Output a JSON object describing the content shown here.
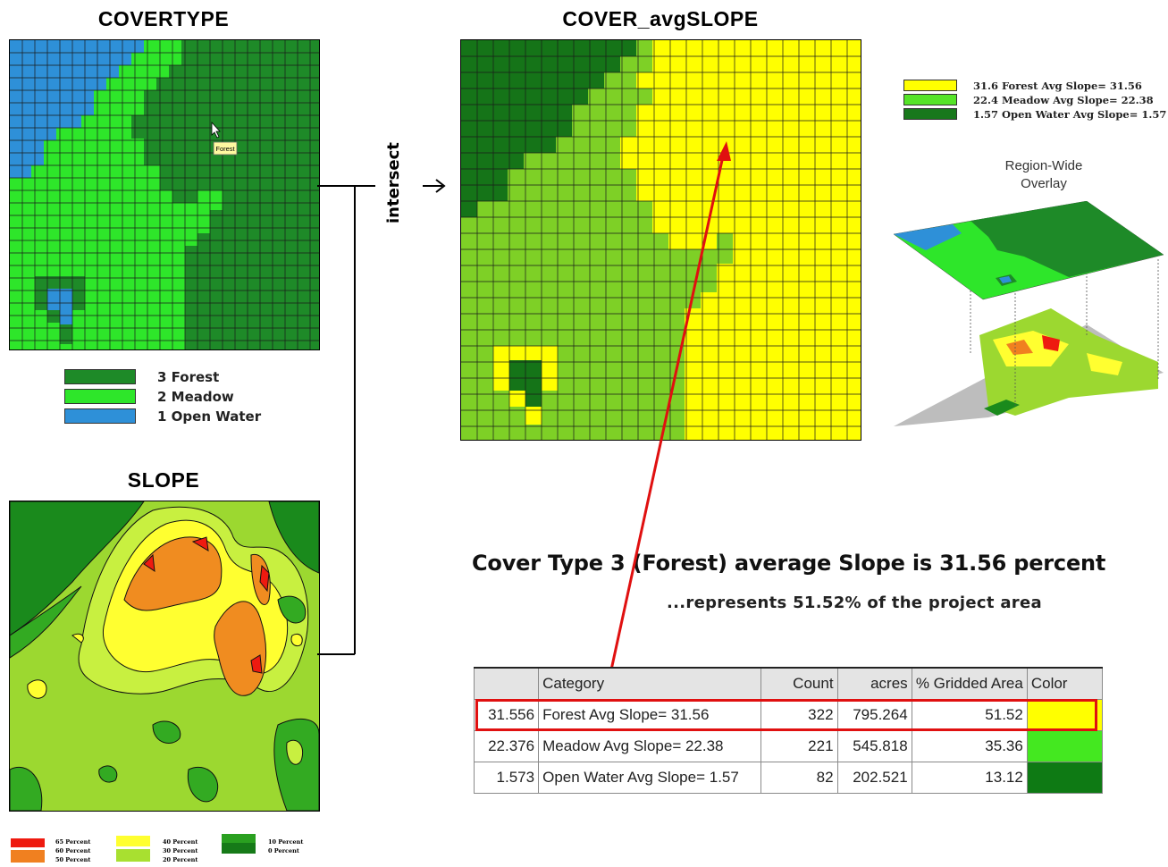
{
  "covertype": {
    "title": "COVERTYPE",
    "forest_label": "Forest",
    "legend": [
      {
        "label": "3 Forest",
        "color": "#1e8a28"
      },
      {
        "label": "2 Meadow",
        "color": "#2ee62a"
      },
      {
        "label": "1 Open Water",
        "color": "#2e90d8"
      }
    ]
  },
  "slope": {
    "title": "SLOPE",
    "legend_groups": [
      {
        "labels": [
          "65 Percent",
          "60 Percent",
          "50 Percent"
        ],
        "colors": [
          "#ee1a10",
          "#f08020"
        ]
      },
      {
        "labels": [
          "40 Percent",
          "30 Percent",
          "20 Percent"
        ],
        "colors": [
          "#ffff30",
          "#a8e030"
        ]
      },
      {
        "labels": [
          "10 Percent",
          "0 Percent"
        ],
        "colors": [
          "#2aa020",
          "#167a18"
        ]
      }
    ]
  },
  "operation": {
    "label": "intersect"
  },
  "cover_avgslope": {
    "title": "COVER_avgSLOPE",
    "legend": [
      {
        "label": "31.6 Forest Avg Slope= 31.56",
        "color": "#ffff00"
      },
      {
        "label": "22.4 Meadow Avg Slope= 22.38",
        "color": "#55e428"
      },
      {
        "label": "1.57 Open Water Avg Slope= 1.57",
        "color": "#18781c"
      }
    ]
  },
  "overlay": {
    "caption_line1": "Region-Wide",
    "caption_line2": "Overlay"
  },
  "headline": "Cover Type 3 (Forest) average Slope is 31.56 percent",
  "subheadline": "...represents 51.52% of the project area",
  "table": {
    "headers": [
      "",
      "Category",
      "Count",
      "acres",
      "% Gridded Area",
      "Color"
    ],
    "rows": [
      {
        "value": "31.556",
        "category": "Forest Avg Slope= 31.56",
        "count": "322",
        "acres": "795.264",
        "pct": "51.52",
        "color": "#ffff00"
      },
      {
        "value": "22.376",
        "category": "Meadow Avg Slope= 22.38",
        "count": "221",
        "acres": "545.818",
        "pct": "35.36",
        "color": "#44e820"
      },
      {
        "value": "1.573",
        "category": "Open Water Avg Slope= 1.57",
        "count": "82",
        "acres": "202.521",
        "pct": "13.12",
        "color": "#0e7a14"
      }
    ]
  },
  "highlight_color": "#e01010"
}
